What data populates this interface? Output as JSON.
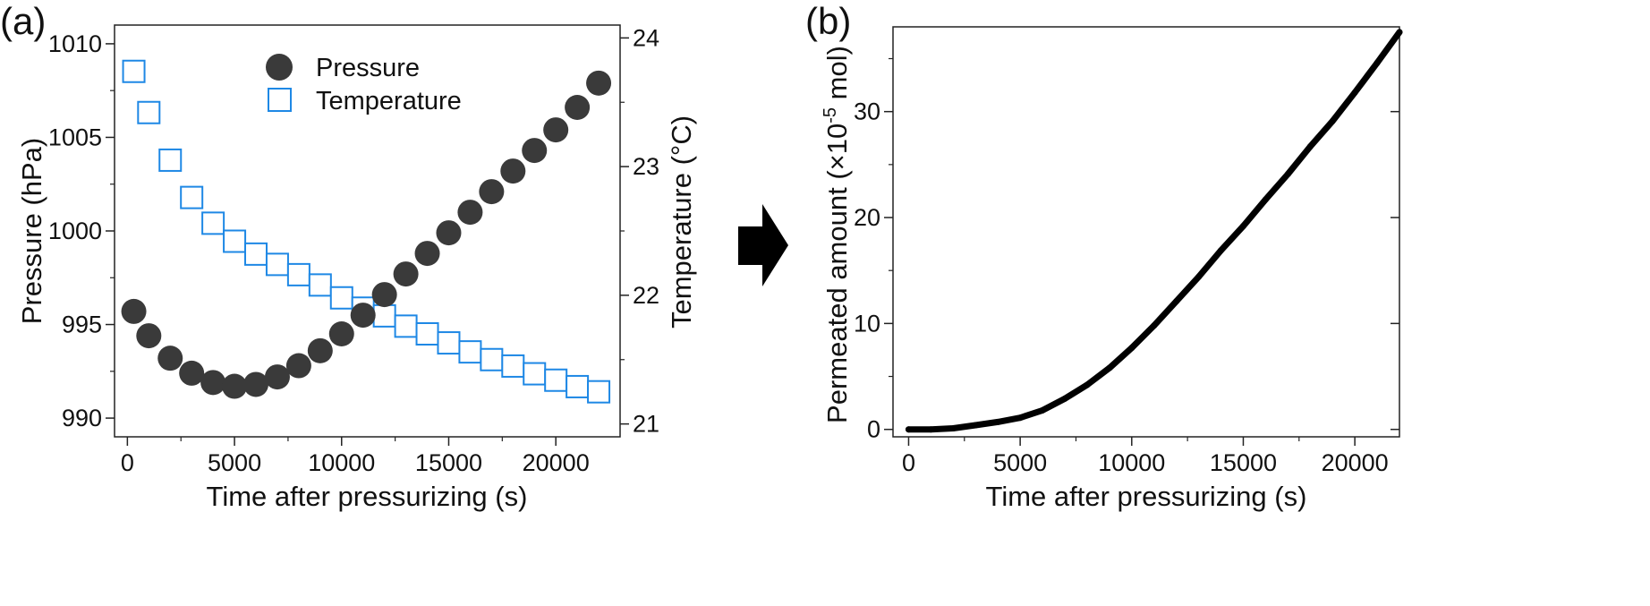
{
  "colors": {
    "pressure": "#3a3a3a",
    "temperature": "#1e88e5",
    "permeated": "#000000",
    "arrow": "#000000"
  },
  "chart_data": [
    {
      "panel_label": "(a)",
      "type": "scatter",
      "title": "",
      "xlabel": "Time after pressurizing (s)",
      "ylabel_left": "Pressure (hPa)",
      "ylabel_right": "Temperature (°C)",
      "xlim": [
        -600,
        23000
      ],
      "ylim_left": [
        989,
        1011
      ],
      "ylim_right": [
        20.9,
        24.1
      ],
      "xticks": [
        0,
        5000,
        10000,
        15000,
        20000
      ],
      "xtick_labels": [
        "0",
        "5000",
        "10000",
        "15000",
        "20000"
      ],
      "yticks_left": [
        990,
        995,
        1000,
        1005,
        1010
      ],
      "ytick_labels_left": [
        "990",
        "995",
        "1000",
        "1005",
        "1010"
      ],
      "yticks_right": [
        21,
        22,
        23,
        24
      ],
      "ytick_labels_right": [
        "21",
        "22",
        "23",
        "24"
      ],
      "legend": {
        "position": "top-center",
        "entries": [
          "Pressure",
          "Temperature"
        ]
      },
      "series": [
        {
          "name": "Pressure",
          "axis": "left",
          "marker": "filled-circle",
          "x": [
            300,
            1000,
            2000,
            3000,
            4000,
            5000,
            6000,
            7000,
            8000,
            9000,
            10000,
            11000,
            12000,
            13000,
            14000,
            15000,
            16000,
            17000,
            18000,
            19000,
            20000,
            21000,
            22000
          ],
          "y": [
            995.7,
            994.4,
            993.2,
            992.4,
            991.9,
            991.7,
            991.8,
            992.2,
            992.8,
            993.6,
            994.5,
            995.5,
            996.6,
            997.7,
            998.8,
            999.9,
            1001.0,
            1002.1,
            1003.2,
            1004.3,
            1005.4,
            1006.6,
            1007.9
          ]
        },
        {
          "name": "Temperature",
          "axis": "right",
          "marker": "open-square",
          "x": [
            300,
            1000,
            2000,
            3000,
            4000,
            5000,
            6000,
            7000,
            8000,
            9000,
            10000,
            11000,
            12000,
            13000,
            14000,
            15000,
            16000,
            17000,
            18000,
            19000,
            20000,
            21000,
            22000
          ],
          "y": [
            23.74,
            23.42,
            23.05,
            22.76,
            22.56,
            22.42,
            22.32,
            22.24,
            22.16,
            22.08,
            21.98,
            21.9,
            21.84,
            21.76,
            21.7,
            21.63,
            21.56,
            21.5,
            21.45,
            21.39,
            21.34,
            21.29,
            21.25
          ]
        }
      ]
    },
    {
      "panel_label": "(b)",
      "type": "line",
      "title": "",
      "xlabel": "Time after pressurizing (s)",
      "ylabel_pre": "Permeated amount (×10",
      "ylabel_sup": "-5",
      "ylabel_post": " mol)",
      "xlim": [
        -700,
        22000
      ],
      "ylim": [
        -0.7,
        38
      ],
      "xticks": [
        0,
        5000,
        10000,
        15000,
        20000
      ],
      "xtick_labels": [
        "0",
        "5000",
        "10000",
        "15000",
        "20000"
      ],
      "yticks": [
        0,
        10,
        20,
        30
      ],
      "ytick_labels": [
        "0",
        "10",
        "20",
        "30"
      ],
      "series": [
        {
          "name": "Permeated amount",
          "x": [
            0,
            1000,
            2000,
            3000,
            4000,
            5000,
            6000,
            7000,
            8000,
            9000,
            10000,
            11000,
            12000,
            13000,
            14000,
            15000,
            16000,
            17000,
            18000,
            19000,
            20000,
            21000,
            22000
          ],
          "y": [
            0,
            0,
            0.1,
            0.4,
            0.7,
            1.1,
            1.8,
            2.9,
            4.2,
            5.8,
            7.7,
            9.8,
            12.1,
            14.4,
            16.9,
            19.2,
            21.7,
            24.1,
            26.7,
            29.1,
            31.8,
            34.6,
            37.5
          ]
        }
      ]
    }
  ]
}
